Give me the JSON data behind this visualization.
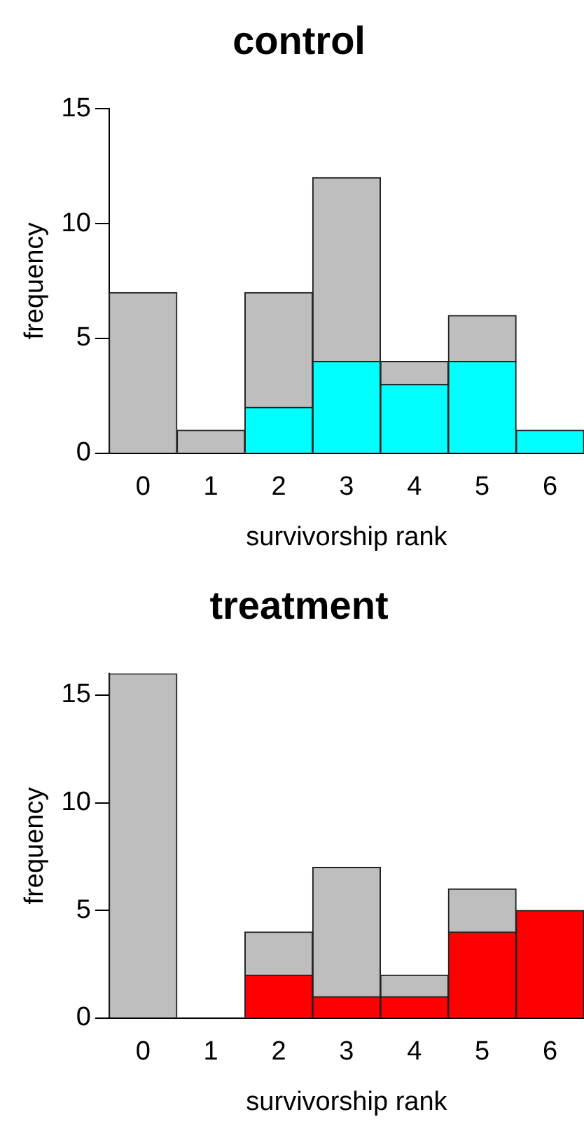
{
  "chart_data": [
    {
      "type": "bar",
      "stacked": true,
      "title": "control",
      "xlabel": "survivorship rank",
      "ylabel": "frequency",
      "categories": [
        "0",
        "1",
        "2",
        "3",
        "4",
        "5",
        "6"
      ],
      "series": [
        {
          "color": "#00ffff",
          "values": [
            0,
            0,
            2,
            4,
            3,
            4,
            1
          ]
        },
        {
          "color": "#bebebe",
          "values": [
            7,
            1,
            5,
            8,
            1,
            2,
            0
          ]
        }
      ],
      "ylim": [
        0,
        15
      ],
      "yticks": [
        0,
        5,
        10,
        15
      ]
    },
    {
      "type": "bar",
      "stacked": true,
      "title": "treatment",
      "xlabel": "survivorship rank",
      "ylabel": "frequency",
      "categories": [
        "0",
        "1",
        "2",
        "3",
        "4",
        "5",
        "6"
      ],
      "series": [
        {
          "color": "#ff0000",
          "values": [
            0,
            0,
            2,
            1,
            1,
            4,
            5
          ]
        },
        {
          "color": "#bebebe",
          "values": [
            16,
            0,
            2,
            6,
            1,
            2,
            0
          ]
        }
      ],
      "ylim": [
        0,
        16
      ],
      "yticks": [
        0,
        5,
        10,
        15
      ]
    }
  ]
}
